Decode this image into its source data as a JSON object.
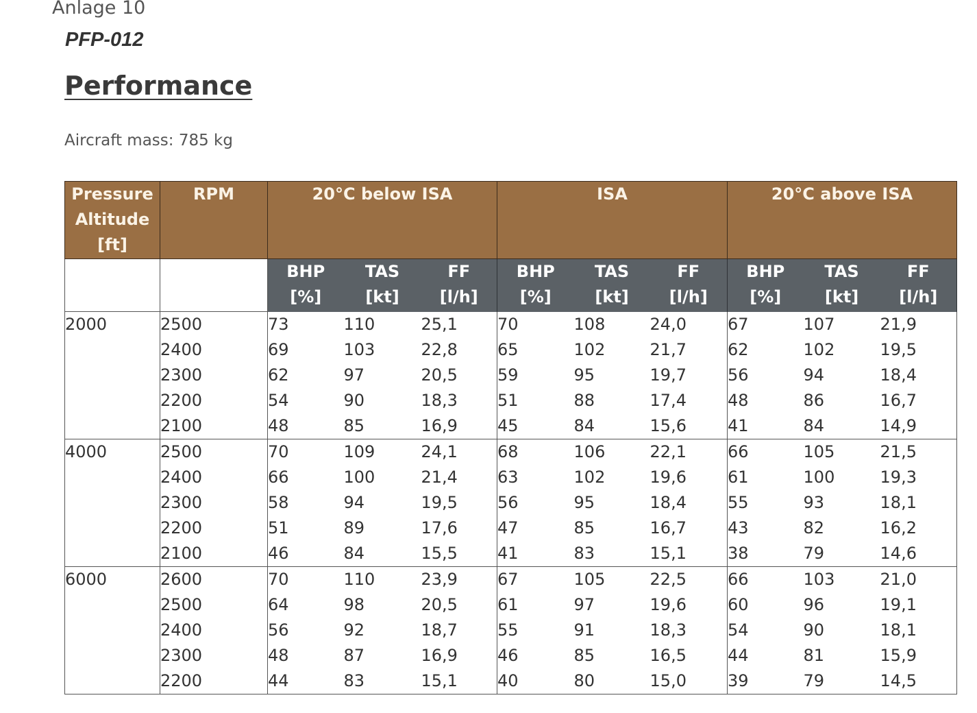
{
  "header": {
    "anlage": "Anlage 10",
    "doc_id": "PFP-012",
    "title": "Performance",
    "mass": "Aircraft mass: 785 kg"
  },
  "table": {
    "col_pressure": "Pressure Altitude [ft]",
    "col_rpm": "RPM",
    "groups": [
      "20°C below ISA",
      "ISA",
      "20°C above ISA"
    ],
    "sub": [
      {
        "line1": "BHP",
        "line2": "[%]"
      },
      {
        "line1": "TAS",
        "line2": "[kt]"
      },
      {
        "line1": "FF",
        "line2": "[l/h]"
      }
    ],
    "blocks": [
      {
        "alt": "2000",
        "rows": [
          [
            "2500",
            "73",
            "110",
            "25,1",
            "70",
            "108",
            "24,0",
            "67",
            "107",
            "21,9"
          ],
          [
            "2400",
            "69",
            "103",
            "22,8",
            "65",
            "102",
            "21,7",
            "62",
            "102",
            "19,5"
          ],
          [
            "2300",
            "62",
            "97",
            "20,5",
            "59",
            "95",
            "19,7",
            "56",
            "94",
            "18,4"
          ],
          [
            "2200",
            "54",
            "90",
            "18,3",
            "51",
            "88",
            "17,4",
            "48",
            "86",
            "16,7"
          ],
          [
            "2100",
            "48",
            "85",
            "16,9",
            "45",
            "84",
            "15,6",
            "41",
            "84",
            "14,9"
          ]
        ]
      },
      {
        "alt": "4000",
        "rows": [
          [
            "2500",
            "70",
            "109",
            "24,1",
            "68",
            "106",
            "22,1",
            "66",
            "105",
            "21,5"
          ],
          [
            "2400",
            "66",
            "100",
            "21,4",
            "63",
            "102",
            "19,6",
            "61",
            "100",
            "19,3"
          ],
          [
            "2300",
            "58",
            "94",
            "19,5",
            "56",
            "95",
            "18,4",
            "55",
            "93",
            "18,1"
          ],
          [
            "2200",
            "51",
            "89",
            "17,6",
            "47",
            "85",
            "16,7",
            "43",
            "82",
            "16,2"
          ],
          [
            "2100",
            "46",
            "84",
            "15,5",
            "41",
            "83",
            "15,1",
            "38",
            "79",
            "14,6"
          ]
        ]
      },
      {
        "alt": "6000",
        "rows": [
          [
            "2600",
            "70",
            "110",
            "23,9",
            "67",
            "105",
            "22,5",
            "66",
            "103",
            "21,0"
          ],
          [
            "2500",
            "64",
            "98",
            "20,5",
            "61",
            "97",
            "19,6",
            "60",
            "96",
            "19,1"
          ],
          [
            "2400",
            "56",
            "92",
            "18,7",
            "55",
            "91",
            "18,3",
            "54",
            "90",
            "18,1"
          ],
          [
            "2300",
            "48",
            "87",
            "16,9",
            "46",
            "85",
            "16,5",
            "44",
            "81",
            "15,9"
          ],
          [
            "2200",
            "44",
            "83",
            "15,1",
            "40",
            "80",
            "15,0",
            "39",
            "79",
            "14,5"
          ]
        ]
      }
    ]
  }
}
